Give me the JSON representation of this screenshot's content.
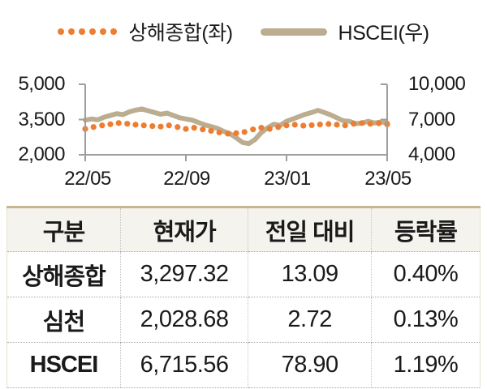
{
  "colors": {
    "shanghai_orange": "#ED7D31",
    "hscei_tan": "#BCAD90",
    "axis_gray": "#9E9E9E",
    "table_top_border": "#C6B68E",
    "table_header_bg": "#F5F3EE"
  },
  "chart_data": {
    "type": "line",
    "legend_position": "top",
    "x_tick_labels": [
      "22/05",
      "22/09",
      "23/01",
      "23/05"
    ],
    "x_tick_months": [
      0,
      4,
      8,
      12
    ],
    "x_range_months": [
      0,
      12
    ],
    "left_axis": {
      "label_for": "상해종합",
      "ticks": [
        "5,000",
        "3,500",
        "2,000"
      ],
      "values": [
        5000,
        3500,
        2000
      ],
      "min": 2000,
      "max": 5000
    },
    "right_axis": {
      "label_for": "HSCEI",
      "ticks": [
        "10,000",
        "7,000",
        "4,000"
      ],
      "values": [
        10000,
        7000,
        4000
      ],
      "min": 4000,
      "max": 10000
    },
    "series": [
      {
        "name": "상해종합(좌)",
        "axis": "left",
        "style": "dotted",
        "color": "#ED7D31",
        "x": [
          0,
          0.33,
          0.67,
          1,
          1.33,
          1.67,
          2,
          2.33,
          2.67,
          3,
          3.33,
          3.67,
          4,
          4.33,
          4.67,
          5,
          5.33,
          5.67,
          6,
          6.33,
          6.67,
          7,
          7.33,
          7.67,
          8,
          8.33,
          8.67,
          9,
          9.33,
          9.67,
          10,
          10.33,
          10.67,
          11,
          11.33,
          11.67,
          12
        ],
        "values": [
          3100,
          3180,
          3250,
          3300,
          3350,
          3320,
          3280,
          3250,
          3220,
          3200,
          3250,
          3180,
          3100,
          3150,
          3080,
          3020,
          2950,
          2900,
          2920,
          2970,
          3080,
          3150,
          3100,
          3180,
          3250,
          3280,
          3240,
          3260,
          3290,
          3310,
          3280,
          3250,
          3320,
          3350,
          3320,
          3340,
          3297
        ]
      },
      {
        "name": "HSCEI(우)",
        "axis": "right",
        "style": "solid",
        "color": "#BCAD90",
        "x": [
          0,
          0.25,
          0.5,
          0.75,
          1,
          1.25,
          1.5,
          1.75,
          2,
          2.25,
          2.5,
          2.75,
          3,
          3.25,
          3.5,
          3.75,
          4,
          4.25,
          4.5,
          4.75,
          5,
          5.25,
          5.5,
          5.75,
          6,
          6.25,
          6.5,
          6.75,
          7,
          7.25,
          7.5,
          7.75,
          8,
          8.25,
          8.5,
          8.75,
          9,
          9.25,
          9.5,
          9.75,
          10,
          10.25,
          10.5,
          10.75,
          11,
          11.25,
          11.5,
          11.75,
          12
        ],
        "values": [
          6950,
          7050,
          6980,
          7200,
          7350,
          7500,
          7420,
          7650,
          7800,
          7900,
          7750,
          7600,
          7450,
          7550,
          7350,
          7150,
          7050,
          6950,
          6750,
          6550,
          6400,
          6250,
          6000,
          5800,
          5450,
          5050,
          4950,
          5300,
          5900,
          6300,
          6600,
          6500,
          6850,
          7050,
          7250,
          7450,
          7600,
          7780,
          7600,
          7400,
          7150,
          6900,
          6850,
          6650,
          6700,
          6850,
          6700,
          6800,
          6715
        ]
      }
    ]
  },
  "table": {
    "headers": [
      "구분",
      "현재가",
      "전일 대비",
      "등락률"
    ],
    "rows": [
      {
        "name": "상해종합",
        "price": "3,297.32",
        "change": "13.09",
        "rate": "0.40%"
      },
      {
        "name": "심천",
        "price": "2,028.68",
        "change": "2.72",
        "rate": "0.13%"
      },
      {
        "name": "HSCEI",
        "price": "6,715.56",
        "change": "78.90",
        "rate": "1.19%"
      }
    ]
  }
}
